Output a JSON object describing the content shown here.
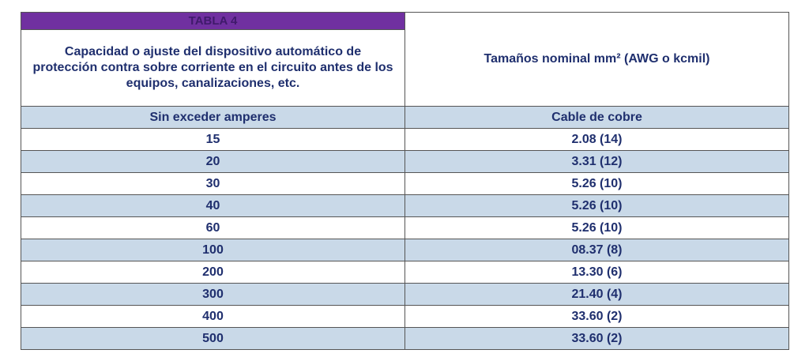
{
  "table": {
    "title": "TABLA 4",
    "left_header": "Capacidad o ajuste del dispositivo automático de protección contra sobre corriente en el circuito antes de los equipos, canalizaciones, etc.",
    "right_header": "Tamaños nominal mm² (AWG o kcmil)",
    "left_subheader": "Sin exceder amperes",
    "right_subheader": "Cable de cobre",
    "colors": {
      "title_bg": "#7030a0",
      "row_shade": "#c9d9e8",
      "text": "#1f2f6e"
    },
    "rows": [
      {
        "amperes": "15",
        "cable": "2.08 (14)"
      },
      {
        "amperes": "20",
        "cable": "3.31 (12)"
      },
      {
        "amperes": "30",
        "cable": "5.26 (10)"
      },
      {
        "amperes": "40",
        "cable": "5.26 (10)"
      },
      {
        "amperes": "60",
        "cable": "5.26 (10)"
      },
      {
        "amperes": "100",
        "cable": "08.37 (8)"
      },
      {
        "amperes": "200",
        "cable": "13.30 (6)"
      },
      {
        "amperes": "300",
        "cable": "21.40 (4)"
      },
      {
        "amperes": "400",
        "cable": "33.60 (2)"
      },
      {
        "amperes": "500",
        "cable": "33.60 (2)"
      }
    ]
  }
}
